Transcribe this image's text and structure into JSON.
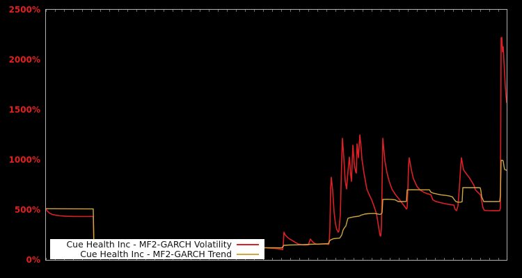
{
  "axes": {
    "tick_color": "#e2201f",
    "yticks": [
      "2500%",
      "2000%",
      "1500%",
      "1000%",
      "500%",
      "0%"
    ]
  },
  "legend": {
    "items": [
      {
        "label": "Cue Health Inc - MF2-GARCH Volatility"
      },
      {
        "label": "Cue Health Inc - MF2-GARCH Trend"
      }
    ]
  },
  "chart_data": {
    "type": "line",
    "title": "",
    "xlabel": "",
    "ylabel": "",
    "y_unit": "percent",
    "ylim": [
      0,
      2500
    ],
    "ytick_values": [
      0,
      500,
      1000,
      1500,
      2000,
      2500
    ],
    "x_domain": [
      0,
      662
    ],
    "x_tick_labels": [],
    "grid": false,
    "background": "#000000",
    "legend_position": "lower-left",
    "series": [
      {
        "name": "Cue Health Inc - MF2-GARCH Volatility",
        "color": "#dd2025",
        "points": [
          [
            0,
            507
          ],
          [
            2,
            488
          ],
          [
            5,
            468
          ],
          [
            9,
            455
          ],
          [
            14,
            447
          ],
          [
            20,
            441
          ],
          [
            28,
            437
          ],
          [
            40,
            435
          ],
          [
            55,
            434
          ],
          [
            67,
            434
          ],
          [
            68,
            434
          ],
          [
            69,
            118
          ],
          [
            85,
            114
          ],
          [
            115,
            111
          ],
          [
            150,
            110
          ],
          [
            190,
            111
          ],
          [
            230,
            114
          ],
          [
            270,
            117
          ],
          [
            300,
            120
          ],
          [
            315,
            121
          ],
          [
            330,
            114
          ],
          [
            338,
            107
          ],
          [
            340,
            103
          ],
          [
            341,
            150
          ],
          [
            342,
            278
          ],
          [
            344,
            248
          ],
          [
            347,
            226
          ],
          [
            351,
            205
          ],
          [
            355,
            190
          ],
          [
            359,
            172
          ],
          [
            363,
            158
          ],
          [
            367,
            152
          ],
          [
            371,
            149
          ],
          [
            377,
            151
          ],
          [
            380,
            208
          ],
          [
            383,
            182
          ],
          [
            386,
            165
          ],
          [
            389,
            157
          ],
          [
            394,
            157
          ],
          [
            399,
            160
          ],
          [
            404,
            158
          ],
          [
            406,
            154
          ],
          [
            407,
            170
          ],
          [
            408,
            312
          ],
          [
            409,
            700
          ],
          [
            410,
            826
          ],
          [
            412,
            690
          ],
          [
            414,
            480
          ],
          [
            416,
            360
          ],
          [
            418,
            302
          ],
          [
            420,
            278
          ],
          [
            421,
            290
          ],
          [
            423,
            460
          ],
          [
            425,
            1000
          ],
          [
            426,
            1215
          ],
          [
            428,
            1020
          ],
          [
            430,
            790
          ],
          [
            432,
            708
          ],
          [
            434,
            890
          ],
          [
            436,
            1028
          ],
          [
            438,
            840
          ],
          [
            439,
            785
          ],
          [
            441,
            1146
          ],
          [
            443,
            960
          ],
          [
            445,
            880
          ],
          [
            446,
            868
          ],
          [
            447,
            1160
          ],
          [
            449,
            1021
          ],
          [
            451,
            1250
          ],
          [
            453,
            1110
          ],
          [
            454,
            1007
          ],
          [
            457,
            868
          ],
          [
            461,
            710
          ],
          [
            464,
            660
          ],
          [
            468,
            600
          ],
          [
            471,
            545
          ],
          [
            475,
            460
          ],
          [
            478,
            330
          ],
          [
            480,
            245
          ],
          [
            481,
            238
          ],
          [
            482,
            320
          ],
          [
            483,
            760
          ],
          [
            484,
            1215
          ],
          [
            487,
            993
          ],
          [
            490,
            870
          ],
          [
            493,
            790
          ],
          [
            497,
            710
          ],
          [
            502,
            655
          ],
          [
            507,
            612
          ],
          [
            512,
            565
          ],
          [
            516,
            528
          ],
          [
            518,
            508
          ],
          [
            519,
            520
          ],
          [
            520,
            700
          ],
          [
            521,
            940
          ],
          [
            522,
            1021
          ],
          [
            525,
            900
          ],
          [
            528,
            812
          ],
          [
            533,
            735
          ],
          [
            538,
            697
          ],
          [
            543,
            676
          ],
          [
            548,
            662
          ],
          [
            553,
            652
          ],
          [
            556,
            600
          ],
          [
            560,
            585
          ],
          [
            567,
            572
          ],
          [
            576,
            558
          ],
          [
            583,
            551
          ],
          [
            586,
            548
          ],
          [
            588,
            504
          ],
          [
            590,
            493
          ],
          [
            592,
            540
          ],
          [
            594,
            720
          ],
          [
            596,
            940
          ],
          [
            597,
            1021
          ],
          [
            600,
            900
          ],
          [
            604,
            861
          ],
          [
            608,
            825
          ],
          [
            611,
            792
          ],
          [
            615,
            745
          ],
          [
            617,
            701
          ],
          [
            621,
            672
          ],
          [
            624,
            653
          ],
          [
            625,
            640
          ],
          [
            626,
            590
          ],
          [
            628,
            520
          ],
          [
            630,
            495
          ],
          [
            634,
            493
          ],
          [
            642,
            492
          ],
          [
            650,
            492
          ],
          [
            652,
            493
          ],
          [
            653,
            520
          ],
          [
            654,
            2220
          ],
          [
            655,
            2222
          ],
          [
            656,
            2080
          ],
          [
            657,
            2130
          ],
          [
            658,
            1990
          ],
          [
            659,
            1870
          ],
          [
            660,
            1740
          ],
          [
            661,
            1640
          ],
          [
            662,
            1570
          ]
        ]
      },
      {
        "name": "Cue Health Inc - MF2-GARCH Trend",
        "color": "#cfa93f",
        "points": [
          [
            0,
            512
          ],
          [
            30,
            511
          ],
          [
            67,
            510
          ],
          [
            68,
            510
          ],
          [
            69,
            122
          ],
          [
            100,
            119
          ],
          [
            150,
            116
          ],
          [
            200,
            116
          ],
          [
            250,
            118
          ],
          [
            290,
            121
          ],
          [
            320,
            122
          ],
          [
            339,
            121
          ],
          [
            342,
            146
          ],
          [
            350,
            149
          ],
          [
            360,
            151
          ],
          [
            370,
            153
          ],
          [
            380,
            156
          ],
          [
            390,
            158
          ],
          [
            400,
            161
          ],
          [
            406,
            163
          ],
          [
            407,
            186
          ],
          [
            409,
            200
          ],
          [
            413,
            212
          ],
          [
            418,
            216
          ],
          [
            422,
            218
          ],
          [
            423,
            228
          ],
          [
            425,
            250
          ],
          [
            427,
            300
          ],
          [
            429,
            322
          ],
          [
            431,
            340
          ],
          [
            433,
            395
          ],
          [
            434,
            417
          ],
          [
            438,
            424
          ],
          [
            442,
            430
          ],
          [
            446,
            434
          ],
          [
            450,
            438
          ],
          [
            453,
            448
          ],
          [
            455,
            452
          ],
          [
            458,
            458
          ],
          [
            462,
            462
          ],
          [
            468,
            464
          ],
          [
            473,
            464
          ],
          [
            477,
            459
          ],
          [
            480,
            455
          ],
          [
            482,
            462
          ],
          [
            483,
            472
          ],
          [
            484,
            604
          ],
          [
            490,
            606
          ],
          [
            496,
            605
          ],
          [
            502,
            600
          ],
          [
            505,
            588
          ],
          [
            506,
            583
          ],
          [
            512,
            583
          ],
          [
            517,
            584
          ],
          [
            518,
            586
          ],
          [
            519,
            701
          ],
          [
            526,
            702
          ],
          [
            534,
            701
          ],
          [
            544,
            701
          ],
          [
            551,
            701
          ],
          [
            553,
            678
          ],
          [
            556,
            668
          ],
          [
            562,
            658
          ],
          [
            568,
            650
          ],
          [
            574,
            645
          ],
          [
            580,
            638
          ],
          [
            584,
            630
          ],
          [
            587,
            600
          ],
          [
            589,
            583
          ],
          [
            592,
            577
          ],
          [
            596,
            578
          ],
          [
            598,
            582
          ],
          [
            599,
            722
          ],
          [
            606,
            723
          ],
          [
            614,
            722
          ],
          [
            622,
            722
          ],
          [
            624,
            720
          ],
          [
            625,
            690
          ],
          [
            626,
            632
          ],
          [
            628,
            600
          ],
          [
            629,
            583
          ],
          [
            640,
            583
          ],
          [
            648,
            583
          ],
          [
            652,
            585
          ],
          [
            653,
            650
          ],
          [
            654,
            995
          ],
          [
            656,
            996
          ],
          [
            657,
            988
          ],
          [
            658,
            940
          ],
          [
            659,
            905
          ],
          [
            661,
            898
          ],
          [
            662,
            896
          ]
        ]
      }
    ]
  }
}
